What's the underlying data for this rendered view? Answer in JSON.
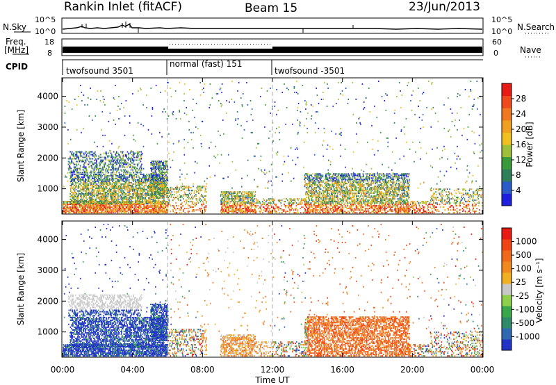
{
  "header": {
    "station": "Rankin Inlet (fitACF)",
    "beam": "Beam 15",
    "date": "23/Jun/2013"
  },
  "sky_panel": {
    "left_label": "N.Sky",
    "right_label": "N.Search",
    "ticks": [
      "10^5",
      "10^0"
    ]
  },
  "freq_panel": {
    "left_label_1": "Freq.",
    "left_label_2": "[MHz]",
    "left_ticks": [
      "18",
      "8"
    ],
    "right_label": "Nave",
    "right_ticks": [
      "60",
      "0"
    ]
  },
  "cpid": {
    "label": "CPID",
    "segments": [
      "twofsound 3501",
      "normal (fast) 151",
      "twofsound -3501"
    ]
  },
  "chart_data": [
    {
      "type": "heatmap",
      "quantity": "power",
      "ylabel": "Slant Range [km]",
      "xlabel": "",
      "x_range_hours": [
        0,
        24
      ],
      "ylim": [
        180,
        4600
      ],
      "y_ticks": [
        "4000",
        "3000",
        "2000",
        "1000"
      ],
      "colorbar": {
        "label": "Power [dB]",
        "ticks": [
          "28",
          "24",
          "20",
          "16",
          "12",
          "8",
          "4"
        ],
        "colors": [
          "#1f1fe0",
          "#2a5bc8",
          "#2f7f5a",
          "#3a9a3a",
          "#9fbf3a",
          "#f0c020",
          "#f0a020",
          "#f07820",
          "#f04a1c",
          "#e81a14"
        ]
      }
    },
    {
      "type": "heatmap",
      "quantity": "velocity",
      "ylabel": "Slant Range [km]",
      "xlabel": "Time UT",
      "x_ticks": [
        "00:00",
        "04:00",
        "08:00",
        "12:00",
        "16:00",
        "20:00",
        "00:00"
      ],
      "x_range_hours": [
        0,
        24
      ],
      "ylim": [
        180,
        4600
      ],
      "y_ticks": [
        "4000",
        "3000",
        "2000",
        "1000"
      ],
      "colorbar": {
        "label": "Velocity [m s⁻¹]",
        "ticks": [
          "1000",
          "500",
          "100",
          "25",
          "-25",
          "-100",
          "-500",
          "-1000"
        ],
        "colors": [
          "#2233c8",
          "#2f6ab0",
          "#2f8a6a",
          "#3aa84a",
          "#8fd04a",
          "#c8c8c8",
          "#f0b020",
          "#f08a20",
          "#f06a1c",
          "#f04414",
          "#e81a14"
        ]
      }
    }
  ]
}
